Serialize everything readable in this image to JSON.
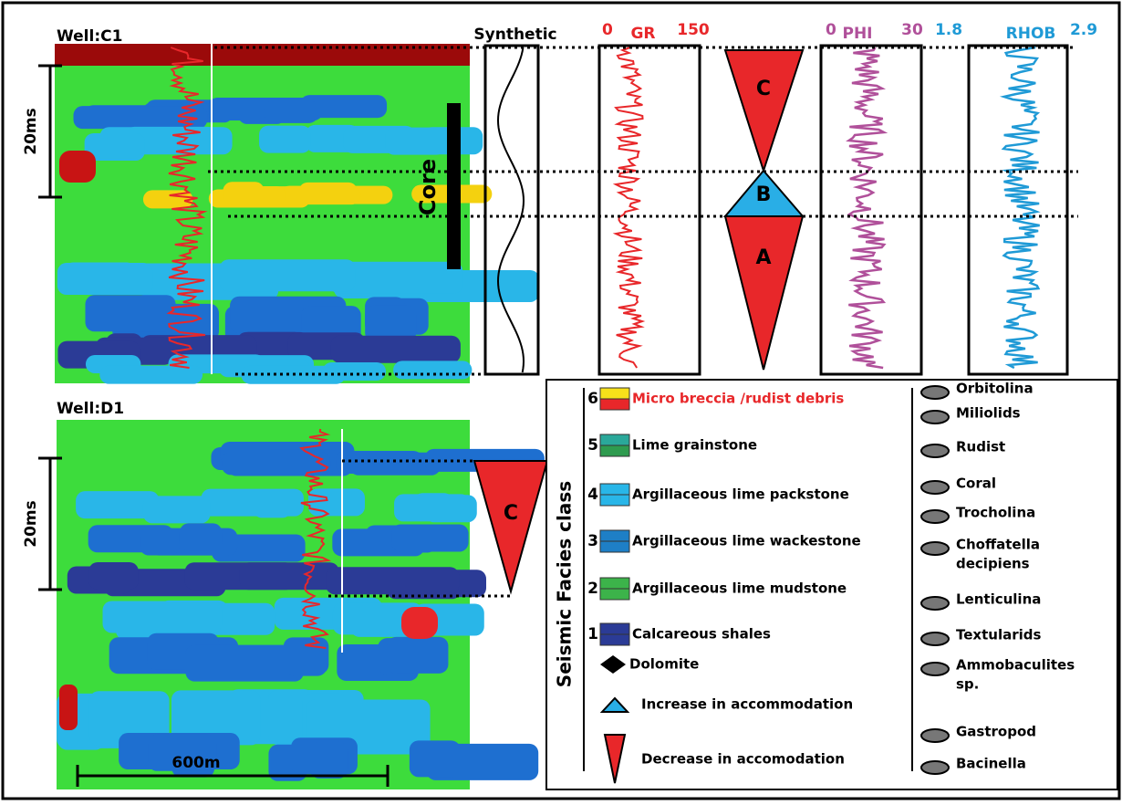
{
  "wells": [
    {
      "label": "Well:C1",
      "time_scale": "20ms"
    },
    {
      "label": "Well:D1",
      "time_scale": "20ms"
    }
  ],
  "core_label": "Core",
  "scale_bar": "600m",
  "logs": {
    "synthetic": "Synthetic",
    "gr": {
      "min": 0,
      "title": "GR",
      "max": 150
    },
    "phi": {
      "min": 0,
      "title": "PHI",
      "max": 30
    },
    "rhob": {
      "min": 1.8,
      "title": "RHOB",
      "max": 2.9
    }
  },
  "sequences": {
    "c1": [
      "C",
      "B",
      "A"
    ],
    "d1": "C"
  },
  "legend": {
    "title": "Seismic Facies class",
    "facies": [
      {
        "class": 6,
        "label": "Micro breccia /rudist debris"
      },
      {
        "class": 5,
        "label": "Lime grainstone"
      },
      {
        "class": 4,
        "label": "Argillaceous lime packstone"
      },
      {
        "class": 3,
        "label": "Argillaceous lime wackestone"
      },
      {
        "class": 2,
        "label": "Argillaceous lime mudstone"
      },
      {
        "class": 1,
        "label": "Calcareous shales"
      }
    ],
    "symbols": [
      "Dolomite",
      "Increase in accommodation",
      "Decrease in accomodation"
    ],
    "fossils": [
      [
        "Orbitolina"
      ],
      [
        "Miliolids"
      ],
      [
        "Rudist"
      ],
      [
        "Coral"
      ],
      [
        "Trocholina"
      ],
      [
        "Choffatella",
        "decipiens"
      ],
      [
        "Lenticulina"
      ],
      [
        "Textularids"
      ],
      [
        "Ammobaculites",
        "sp."
      ],
      [
        "Gastropod"
      ],
      [
        "Bacinella"
      ]
    ]
  }
}
